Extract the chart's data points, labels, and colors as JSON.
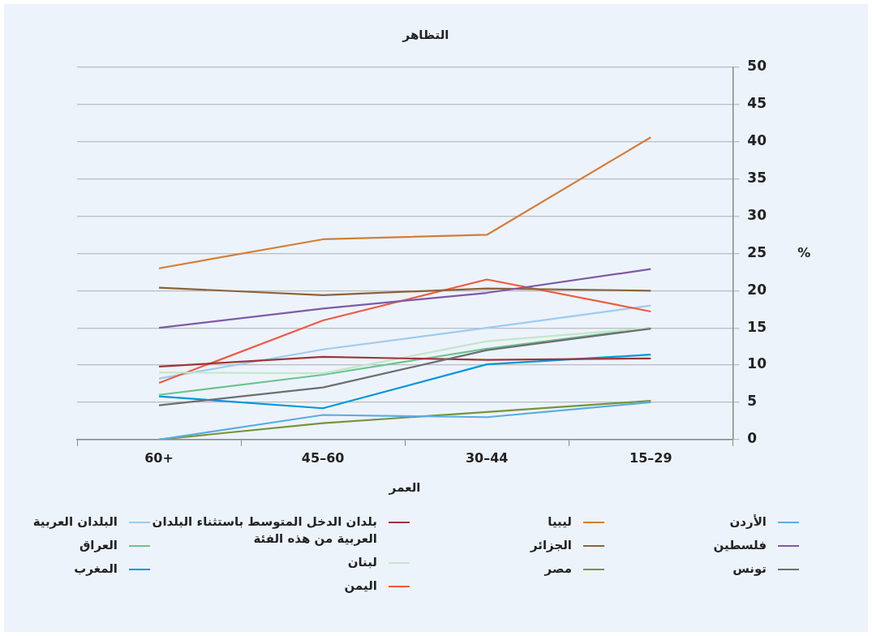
{
  "chart_data": {
    "type": "line",
    "title": "التظاهر",
    "xlabel": "العمر",
    "ylabel": "%",
    "categories": [
      "60+",
      "45–60",
      "30–44",
      "15–29"
    ],
    "ylim": [
      0,
      50
    ],
    "yticks": [
      0,
      5,
      10,
      15,
      20,
      25,
      30,
      35,
      40,
      45,
      50
    ],
    "grid": "y",
    "legend": "bottom",
    "marker": "none",
    "line_style": "solid",
    "series": [
      {
        "name": "الأردن",
        "color": "#5aaee0",
        "values": [
          0,
          3.3,
          3.0,
          5.0
        ]
      },
      {
        "name": "فلسطين",
        "color": "#7e5aa6",
        "values": [
          15,
          17.6,
          19.7,
          22.9
        ]
      },
      {
        "name": "تونس",
        "color": "#6d6e71",
        "values": [
          4.6,
          7.0,
          12.0,
          14.9
        ]
      },
      {
        "name": "ليبيا",
        "color": "#d47e35",
        "values": [
          23,
          26.9,
          27.5,
          40.6
        ]
      },
      {
        "name": "الجزائر",
        "color": "#8c6239",
        "values": [
          20.4,
          19.4,
          20.3,
          20.0
        ]
      },
      {
        "name": "مصر",
        "color": "#77933c",
        "values": [
          0,
          2.2,
          3.7,
          5.2
        ]
      },
      {
        "name": "بلدان الدخل المتوسط باستثناء البلدان العربية من هذه الفئة",
        "color": "#a0353a",
        "values": [
          9.8,
          11.1,
          10.7,
          10.9
        ]
      },
      {
        "name": "لبنان",
        "color": "#c3e6cb",
        "values": [
          9.0,
          8.9,
          13.2,
          15.0
        ]
      },
      {
        "name": "اليمن",
        "color": "#f05a40",
        "values": [
          7.6,
          16.0,
          21.5,
          17.2
        ]
      },
      {
        "name": "البلدان العربية",
        "color": "#9ecbef",
        "values": [
          8.2,
          12.1,
          15.0,
          18.0
        ]
      },
      {
        "name": "العراق",
        "color": "#6cc48c",
        "values": [
          6.0,
          8.7,
          12.2,
          15.0
        ]
      },
      {
        "name": "المغرب",
        "color": "#0097dc",
        "values": [
          5.8,
          4.2,
          10.1,
          11.4
        ]
      }
    ]
  }
}
